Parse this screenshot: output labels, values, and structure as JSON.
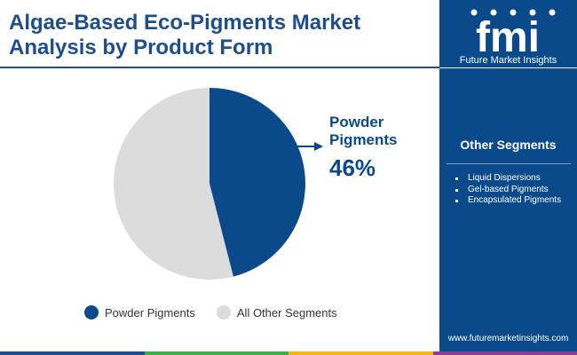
{
  "header": {
    "title_line1": "Algae-Based Eco-Pigments Market",
    "title_line2": "Analysis by Product Form"
  },
  "branding": {
    "logo_text": "fmi",
    "company": "Future Market Insights",
    "website": "www.futuremarketinsights.com"
  },
  "sidebar": {
    "heading": "Other Segments",
    "items": [
      "Liquid Dispersions",
      "Gel-based Pigments",
      "Encapsulated Pigments"
    ]
  },
  "colors": {
    "primary": "#0b4a8a",
    "other": "#dcdcdc",
    "bar": [
      "#1f4e8c",
      "#3fae49",
      "#f2b81b",
      "#8a3e96"
    ]
  },
  "chart_data": {
    "type": "pie",
    "slices": [
      {
        "label": "Powder Pigments",
        "value": 46,
        "color": "#0b4a8a"
      },
      {
        "label": "All Other Segments",
        "value": 54,
        "color": "#dcdcdc"
      }
    ],
    "callout": {
      "label_line1": "Powder",
      "label_line2": "Pigments",
      "value": "46%"
    },
    "legend": [
      "Powder Pigments",
      "All Other Segments"
    ],
    "legend_position": "bottom"
  }
}
